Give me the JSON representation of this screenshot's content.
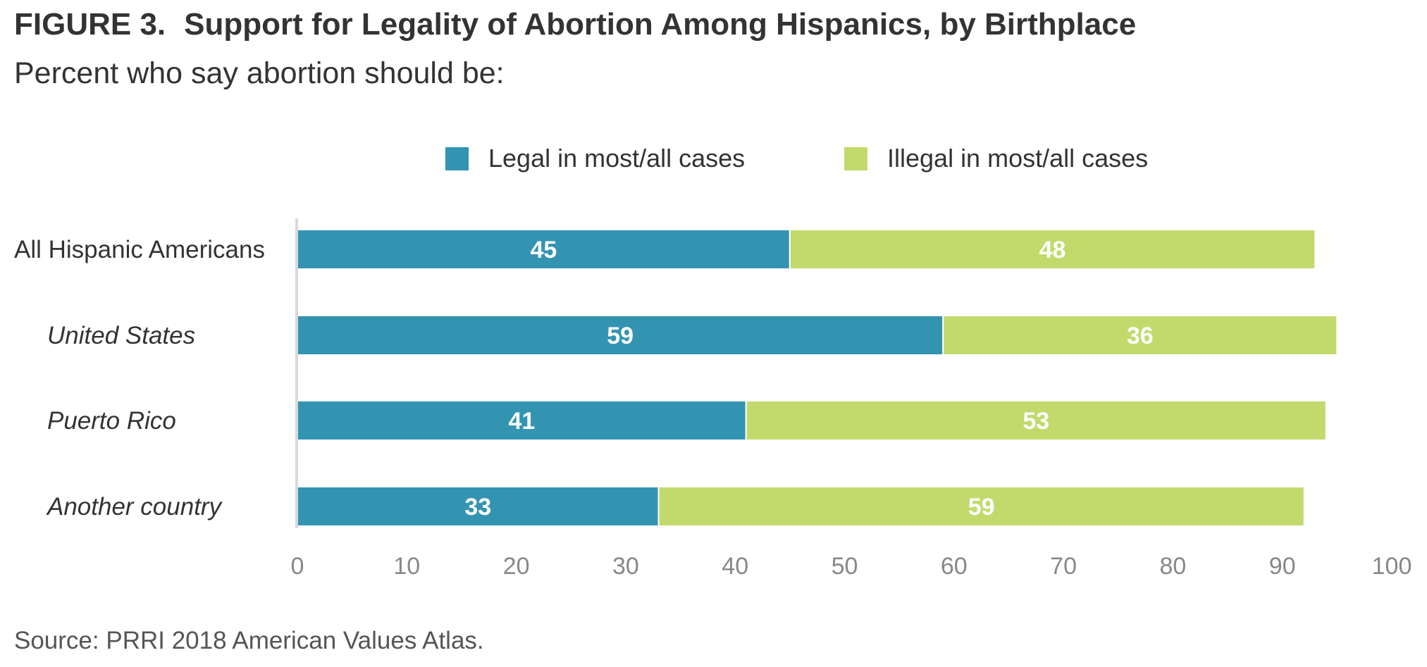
{
  "figure": {
    "number_label": "FIGURE 3.",
    "title": "Support for Legality of Abortion Among Hispanics, by Birthplace",
    "subtitle": "Percent who say abortion should be:",
    "source": "Source: PRRI 2018 American Values Atlas."
  },
  "colors": {
    "legal": "#3394b2",
    "illegal": "#c2da6b",
    "axis": "#d9d9d9",
    "text": "#333333",
    "tick": "#888888"
  },
  "chart_data": {
    "type": "bar",
    "orientation": "horizontal",
    "stacked": true,
    "title": "Support for Legality of Abortion Among Hispanics, by Birthplace",
    "subtitle": "Percent who say abortion should be:",
    "categories": [
      "All Hispanic Americans",
      "United States",
      "Puerto Rico",
      "Another country"
    ],
    "category_italic": [
      false,
      true,
      true,
      true
    ],
    "series": [
      {
        "name": "Legal in most/all cases",
        "values": [
          45,
          59,
          41,
          33
        ]
      },
      {
        "name": "Illegal in most/all cases",
        "values": [
          48,
          36,
          53,
          59
        ]
      }
    ],
    "xlim": [
      0,
      100
    ],
    "xticks": [
      0,
      10,
      20,
      30,
      40,
      50,
      60,
      70,
      80,
      90,
      100
    ],
    "xlabel": "",
    "ylabel": "",
    "grid": false,
    "legend_position": "top-center"
  }
}
